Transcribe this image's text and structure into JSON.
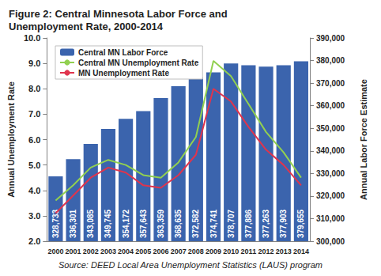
{
  "chart_data": {
    "type": "bar",
    "title": "Figure 2: Central Minnesota Labor Force and Unemployment Rate, 2000-2014",
    "source": "Source: DEED Local Area Unemployment Statistics (LAUS) program",
    "y_label": "Annual Unemployment Rate",
    "y2_label": "Annual Labor Force Estimate",
    "categories": [
      "2000",
      "2001",
      "2002",
      "2003",
      "2004",
      "2005",
      "2006",
      "2007",
      "2008",
      "2009",
      "2010",
      "2011",
      "2012",
      "2013",
      "2014"
    ],
    "series": [
      {
        "name": "Central MN Labor Force",
        "type": "bar",
        "axis": "y2",
        "color": "#3b64ad",
        "data_labels": true,
        "values": [
          328733,
          336301,
          343085,
          349745,
          354172,
          357643,
          363359,
          368635,
          372582,
          374741,
          378707,
          377886,
          377263,
          377903,
          379655
        ],
        "value_labels": [
          "328,733",
          "336,301",
          "343,085",
          "349,745",
          "354,172",
          "357,643",
          "363,359",
          "368,635",
          "372,582",
          "374,741",
          "378,707",
          "377,886",
          "377,263",
          "377,903",
          "379,655"
        ]
      },
      {
        "name": "Central MN Unemployment Rate",
        "type": "line",
        "color": "#92d050",
        "values": [
          3.6,
          4.2,
          4.9,
          5.2,
          5.0,
          4.6,
          4.5,
          5.1,
          6.1,
          9.1,
          8.5,
          7.4,
          6.3,
          5.5,
          4.5
        ]
      },
      {
        "name": "MN Unemployment Rate",
        "type": "line",
        "color": "#e0344d",
        "values": [
          3.1,
          3.8,
          4.5,
          4.9,
          4.7,
          4.2,
          4.1,
          4.6,
          5.4,
          8.0,
          7.5,
          6.5,
          5.6,
          5.0,
          4.2
        ]
      }
    ],
    "ylim": [
      2,
      10
    ],
    "yticks": [
      {
        "value": 2,
        "label": "2.0"
      },
      {
        "value": 3,
        "label": "3.0"
      },
      {
        "value": 4,
        "label": "4.0"
      },
      {
        "value": 5,
        "label": "5.0"
      },
      {
        "value": 6,
        "label": "6.0"
      },
      {
        "value": 7,
        "label": "7.0"
      },
      {
        "value": 8,
        "label": "8.0"
      },
      {
        "value": 9,
        "label": "9.0"
      },
      {
        "value": 10,
        "label": "10.0"
      }
    ],
    "y2lim": [
      300000,
      390000
    ],
    "y2ticks": [
      {
        "value": 300000,
        "label": "300,000"
      },
      {
        "value": 310000,
        "label": "310,000"
      },
      {
        "value": 320000,
        "label": "320,000"
      },
      {
        "value": 330000,
        "label": "330,000"
      },
      {
        "value": 340000,
        "label": "340,000"
      },
      {
        "value": 350000,
        "label": "350,000"
      },
      {
        "value": 360000,
        "label": "360,000"
      },
      {
        "value": 370000,
        "label": "370,000"
      },
      {
        "value": 380000,
        "label": "380,000"
      },
      {
        "value": 390000,
        "label": "390,000"
      }
    ],
    "grid": false,
    "legend": "upper left"
  }
}
